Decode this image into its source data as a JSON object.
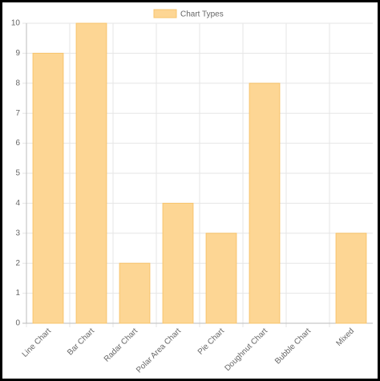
{
  "chart_data": {
    "type": "bar",
    "legend": "Chart Types",
    "categories": [
      "Line Chart",
      "Bar Chart",
      "Radar Chart",
      "Polar Area Chart",
      "Pie Chart",
      "Doughnut Chart",
      "Bubble Chart",
      "Mixed"
    ],
    "values": [
      9,
      10,
      2,
      4,
      3,
      8,
      0,
      3
    ],
    "color": "#fdd694",
    "border_color": "#f7c46c",
    "ylim": [
      0,
      10
    ],
    "yticks": [
      0,
      1,
      2,
      3,
      4,
      5,
      6,
      7,
      8,
      9,
      10
    ],
    "grid": true
  }
}
